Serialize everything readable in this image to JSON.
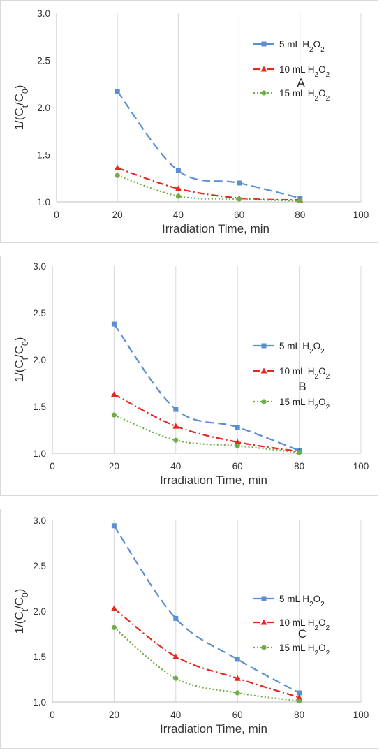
{
  "chart_data": [
    {
      "type": "line",
      "panel_label": "A",
      "xlabel": "Irradiation Time, min",
      "ylabel": "1/(Ct/C0)",
      "xlim": [
        0,
        100
      ],
      "ylim": [
        1.0,
        3.0
      ],
      "xticks": [
        "0",
        "20",
        "40",
        "60",
        "80",
        "100"
      ],
      "yticks": [
        "1.0",
        "1.5",
        "2.0",
        "2.5",
        "3.0"
      ],
      "x": [
        20,
        40,
        60,
        80
      ],
      "series": [
        {
          "name": "5 mL H2O2",
          "values": [
            2.17,
            1.33,
            1.2,
            1.04
          ]
        },
        {
          "name": "10 mL H2O2",
          "values": [
            1.36,
            1.14,
            1.04,
            1.02
          ]
        },
        {
          "name": "15 mL H2O2",
          "values": [
            1.28,
            1.06,
            1.03,
            1.01
          ]
        }
      ]
    },
    {
      "type": "line",
      "panel_label": "B",
      "xlabel": "Irradiation Time, min",
      "ylabel": "1/(Ct/C0)",
      "xlim": [
        0,
        100
      ],
      "ylim": [
        1.0,
        3.0
      ],
      "xticks": [
        "0",
        "20",
        "40",
        "60",
        "80",
        "100"
      ],
      "yticks": [
        "1.0",
        "1.5",
        "2.0",
        "2.5",
        "3.0"
      ],
      "x": [
        20,
        40,
        60,
        80
      ],
      "series": [
        {
          "name": "5 mL H2O2",
          "values": [
            2.38,
            1.47,
            1.28,
            1.03
          ]
        },
        {
          "name": "10 mL H2O2",
          "values": [
            1.63,
            1.29,
            1.12,
            1.02
          ]
        },
        {
          "name": "15 mL H2O2",
          "values": [
            1.41,
            1.14,
            1.08,
            1.01
          ]
        }
      ]
    },
    {
      "type": "line",
      "panel_label": "C",
      "xlabel": "Irradiation Time, min",
      "ylabel": "1/(Ct/C0)",
      "xlim": [
        0,
        100
      ],
      "ylim": [
        1.0,
        3.0
      ],
      "xticks": [
        "0",
        "20",
        "40",
        "60",
        "80",
        "100"
      ],
      "yticks": [
        "1.0",
        "1.5",
        "2.0",
        "2.5",
        "3.0"
      ],
      "x": [
        20,
        40,
        60,
        80
      ],
      "series": [
        {
          "name": "5 mL H2O2",
          "values": [
            2.94,
            1.92,
            1.47,
            1.1
          ]
        },
        {
          "name": "10 mL H2O2",
          "values": [
            2.03,
            1.5,
            1.26,
            1.05
          ]
        },
        {
          "name": "15 mL H2O2",
          "values": [
            1.82,
            1.26,
            1.1,
            1.01
          ]
        }
      ]
    }
  ],
  "series_style": [
    {
      "color": "#5b8fd4",
      "marker": "square",
      "dash": "12,6"
    },
    {
      "color": "#e8261c",
      "marker": "triangle",
      "dash": "10,4,2,4"
    },
    {
      "color": "#70ad47",
      "marker": "circle",
      "dash": "2,3"
    }
  ]
}
